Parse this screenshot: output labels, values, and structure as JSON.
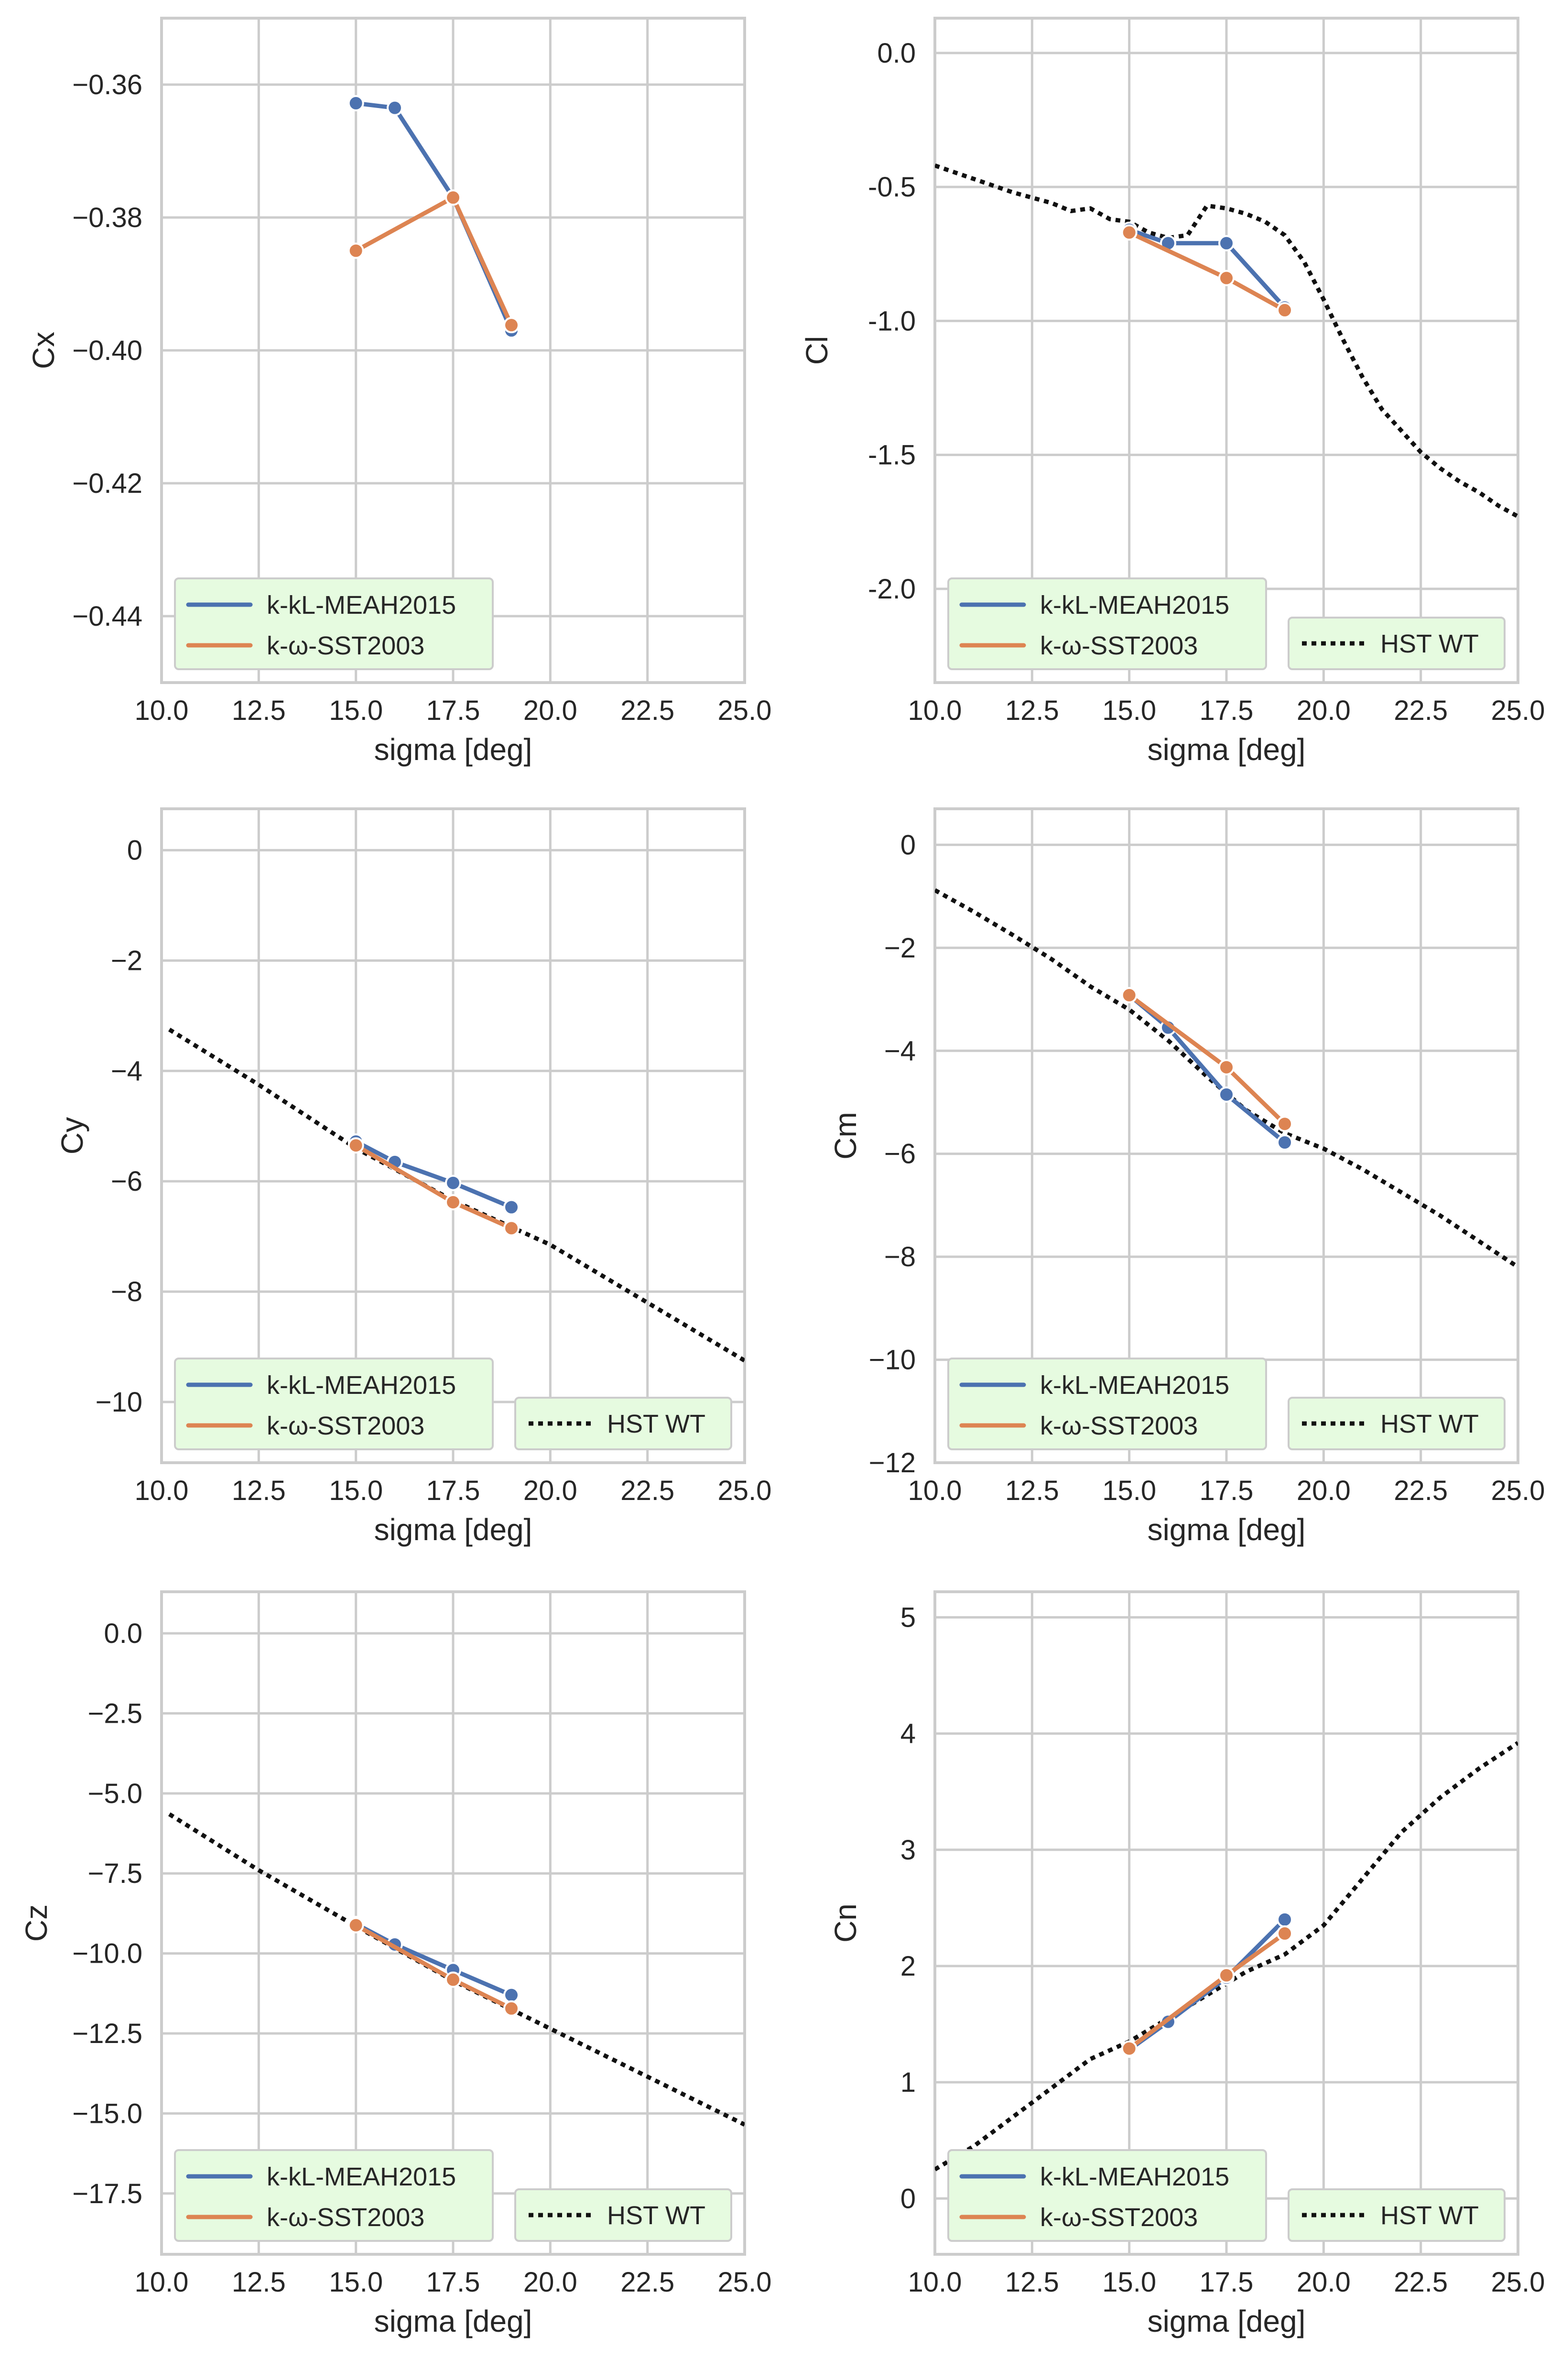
{
  "colors": {
    "kkl": "#4c72b0",
    "sst": "#dd8452",
    "hst": "#111111",
    "grid": "#cccccc",
    "legend_bg": "#e6fbe0"
  },
  "chart_data": [
    {
      "id": "cx",
      "type": "line",
      "xlabel": "sigma [deg]",
      "ylabel": "Cx",
      "xlim": [
        10.0,
        25.0
      ],
      "ylim": [
        -0.45,
        -0.35
      ],
      "xticks": [
        "10.0",
        "12.5",
        "15.0",
        "17.5",
        "20.0",
        "22.5",
        "25.0"
      ],
      "yticks": [
        {
          "v": -0.36,
          "label": "−0.36"
        },
        {
          "v": -0.38,
          "label": "−0.38"
        },
        {
          "v": -0.4,
          "label": "−0.40"
        },
        {
          "v": -0.42,
          "label": "−0.42"
        },
        {
          "v": -0.44,
          "label": "−0.44"
        }
      ],
      "series": [
        {
          "name": "k-kL-MEAH2015",
          "style": "kkl",
          "x": [
            15,
            16,
            17.5,
            19
          ],
          "y": [
            -0.3628,
            -0.3635,
            -0.377,
            -0.397
          ]
        },
        {
          "name": "k-ω-SST2003",
          "style": "sst",
          "x": [
            15,
            17.5,
            19
          ],
          "y": [
            -0.385,
            -0.377,
            -0.3962
          ]
        }
      ],
      "legend": [
        {
          "label": "k-kL-MEAH2015",
          "style": "kkl"
        },
        {
          "label": "k-ω-SST2003",
          "style": "sst"
        }
      ]
    },
    {
      "id": "cl",
      "type": "line",
      "xlabel": "sigma [deg]",
      "ylabel": "Cl",
      "xlim": [
        10.0,
        25.0
      ],
      "ylim": [
        -2.35,
        0.13
      ],
      "xticks": [
        "10.0",
        "12.5",
        "15.0",
        "17.5",
        "20.0",
        "22.5",
        "25.0"
      ],
      "yticks": [
        {
          "v": 0.0,
          "label": "0.0"
        },
        {
          "v": -0.5,
          "label": "-0.5"
        },
        {
          "v": -1.0,
          "label": "-1.0"
        },
        {
          "v": -1.5,
          "label": "-1.5"
        },
        {
          "v": -2.0,
          "label": "-2.0"
        }
      ],
      "series": [
        {
          "name": "HST WT",
          "style": "hst",
          "x": [
            10,
            11,
            12,
            13,
            13.5,
            14,
            14.5,
            15,
            15.5,
            16,
            16.5,
            17,
            17.5,
            18,
            18.5,
            19,
            19.5,
            20,
            20.5,
            21,
            21.5,
            22,
            22.5,
            23,
            23.5,
            24,
            24.5,
            25
          ],
          "y": [
            -0.42,
            -0.47,
            -0.52,
            -0.56,
            -0.59,
            -0.58,
            -0.62,
            -0.63,
            -0.67,
            -0.69,
            -0.68,
            -0.57,
            -0.58,
            -0.6,
            -0.63,
            -0.68,
            -0.78,
            -0.92,
            -1.07,
            -1.21,
            -1.33,
            -1.41,
            -1.49,
            -1.55,
            -1.6,
            -1.64,
            -1.69,
            -1.73
          ]
        },
        {
          "name": "k-kL-MEAH2015",
          "style": "kkl",
          "x": [
            15,
            16,
            17.5,
            19
          ],
          "y": [
            -0.66,
            -0.71,
            -0.71,
            -0.95
          ]
        },
        {
          "name": "k-ω-SST2003",
          "style": "sst",
          "x": [
            15,
            17.5,
            19
          ],
          "y": [
            -0.67,
            -0.84,
            -0.96
          ]
        }
      ],
      "legend": [
        {
          "label": "k-kL-MEAH2015",
          "style": "kkl"
        },
        {
          "label": "k-ω-SST2003",
          "style": "sst"
        },
        {
          "label": "HST WT",
          "style": "hst"
        }
      ]
    },
    {
      "id": "cy",
      "type": "line",
      "xlabel": "sigma [deg]",
      "ylabel": "Cy",
      "xlim": [
        10.0,
        25.0
      ],
      "ylim": [
        -11.1,
        0.75
      ],
      "xticks": [
        "10.0",
        "12.5",
        "15.0",
        "17.5",
        "20.0",
        "22.5",
        "25.0"
      ],
      "yticks": [
        {
          "v": 0,
          "label": "0"
        },
        {
          "v": -2,
          "label": "−2"
        },
        {
          "v": -4,
          "label": "−4"
        },
        {
          "v": -6,
          "label": "−6"
        },
        {
          "v": -8,
          "label": "−8"
        },
        {
          "v": -10,
          "label": "−10"
        }
      ],
      "series": [
        {
          "name": "HST WT",
          "style": "hst",
          "x": [
            10.2,
            12.5,
            15,
            17.5,
            20,
            22.5,
            25
          ],
          "y": [
            -3.25,
            -4.25,
            -5.4,
            -6.35,
            -7.15,
            -8.2,
            -9.25
          ]
        },
        {
          "name": "k-kL-MEAH2015",
          "style": "kkl",
          "x": [
            15,
            16,
            17.5,
            19
          ],
          "y": [
            -5.28,
            -5.65,
            -6.03,
            -6.47
          ]
        },
        {
          "name": "k-ω-SST2003",
          "style": "sst",
          "x": [
            15,
            17.5,
            19
          ],
          "y": [
            -5.35,
            -6.38,
            -6.85
          ]
        }
      ],
      "legend": [
        {
          "label": "k-kL-MEAH2015",
          "style": "kkl"
        },
        {
          "label": "k-ω-SST2003",
          "style": "sst"
        },
        {
          "label": "HST WT",
          "style": "hst"
        }
      ]
    },
    {
      "id": "cm",
      "type": "line",
      "xlabel": "sigma [deg]",
      "ylabel": "Cm",
      "xlim": [
        10.0,
        25.0
      ],
      "ylim": [
        -12.0,
        0.7
      ],
      "xticks": [
        "10.0",
        "12.5",
        "15.0",
        "17.5",
        "20.0",
        "22.5",
        "25.0"
      ],
      "yticks": [
        {
          "v": 0,
          "label": "0"
        },
        {
          "v": -2,
          "label": "−2"
        },
        {
          "v": -4,
          "label": "−4"
        },
        {
          "v": -6,
          "label": "−6"
        },
        {
          "v": -8,
          "label": "−8"
        },
        {
          "v": -10,
          "label": "−10"
        },
        {
          "v": -12,
          "label": "−12"
        }
      ],
      "series": [
        {
          "name": "HST WT",
          "style": "hst",
          "x": [
            10,
            11,
            12,
            13,
            14,
            15,
            16,
            17,
            18,
            19,
            20,
            21,
            22,
            23,
            24,
            25
          ],
          "y": [
            -0.88,
            -1.3,
            -1.75,
            -2.22,
            -2.75,
            -3.2,
            -3.8,
            -4.5,
            -5.15,
            -5.6,
            -5.9,
            -6.3,
            -6.75,
            -7.2,
            -7.7,
            -8.2
          ]
        },
        {
          "name": "k-kL-MEAH2015",
          "style": "kkl",
          "x": [
            15,
            16,
            17.5,
            19
          ],
          "y": [
            -2.92,
            -3.55,
            -4.85,
            -5.78
          ]
        },
        {
          "name": "k-ω-SST2003",
          "style": "sst",
          "x": [
            15,
            17.5,
            19
          ],
          "y": [
            -2.92,
            -4.32,
            -5.42
          ]
        }
      ],
      "legend": [
        {
          "label": "k-kL-MEAH2015",
          "style": "kkl"
        },
        {
          "label": "k-ω-SST2003",
          "style": "sst"
        },
        {
          "label": "HST WT",
          "style": "hst"
        }
      ]
    },
    {
      "id": "cz",
      "type": "line",
      "xlabel": "sigma [deg]",
      "ylabel": "Cz",
      "xlim": [
        10.0,
        25.0
      ],
      "ylim": [
        -19.4,
        1.3
      ],
      "xticks": [
        "10.0",
        "12.5",
        "15.0",
        "17.5",
        "20.0",
        "22.5",
        "25.0"
      ],
      "yticks": [
        {
          "v": 0.0,
          "label": "0.0"
        },
        {
          "v": -2.5,
          "label": "−2.5"
        },
        {
          "v": -5.0,
          "label": "−5.0"
        },
        {
          "v": -7.5,
          "label": "−7.5"
        },
        {
          "v": -10.0,
          "label": "−10.0"
        },
        {
          "v": -12.5,
          "label": "−12.5"
        },
        {
          "v": -15.0,
          "label": "−15.0"
        },
        {
          "v": -17.5,
          "label": "−17.5"
        }
      ],
      "series": [
        {
          "name": "HST WT",
          "style": "hst",
          "x": [
            10.2,
            12.5,
            15,
            17.5,
            20,
            22.5,
            25
          ],
          "y": [
            -5.65,
            -7.4,
            -9.15,
            -10.85,
            -12.35,
            -13.85,
            -15.35
          ]
        },
        {
          "name": "k-kL-MEAH2015",
          "style": "kkl",
          "x": [
            15,
            16,
            17.5,
            19
          ],
          "y": [
            -9.08,
            -9.72,
            -10.52,
            -11.3
          ]
        },
        {
          "name": "k-ω-SST2003",
          "style": "sst",
          "x": [
            15,
            17.5,
            19
          ],
          "y": [
            -9.12,
            -10.82,
            -11.72
          ]
        }
      ],
      "legend": [
        {
          "label": "k-kL-MEAH2015",
          "style": "kkl"
        },
        {
          "label": "k-ω-SST2003",
          "style": "sst"
        },
        {
          "label": "HST WT",
          "style": "hst"
        }
      ]
    },
    {
      "id": "cn",
      "type": "line",
      "xlabel": "sigma [deg]",
      "ylabel": "Cn",
      "xlim": [
        10.0,
        25.0
      ],
      "ylim": [
        -0.48,
        5.22
      ],
      "xticks": [
        "10.0",
        "12.5",
        "15.0",
        "17.5",
        "20.0",
        "22.5",
        "25.0"
      ],
      "yticks": [
        {
          "v": 0,
          "label": "0"
        },
        {
          "v": 1,
          "label": "1"
        },
        {
          "v": 2,
          "label": "2"
        },
        {
          "v": 3,
          "label": "3"
        },
        {
          "v": 4,
          "label": "4"
        },
        {
          "v": 5,
          "label": "5"
        }
      ],
      "series": [
        {
          "name": "HST WT",
          "style": "hst",
          "x": [
            10,
            11,
            12,
            13,
            14,
            15,
            16,
            17,
            18,
            19,
            20,
            21,
            22,
            23,
            24,
            25
          ],
          "y": [
            0.25,
            0.45,
            0.7,
            0.95,
            1.2,
            1.35,
            1.55,
            1.75,
            1.95,
            2.1,
            2.35,
            2.75,
            3.15,
            3.45,
            3.7,
            3.92
          ]
        },
        {
          "name": "k-kL-MEAH2015",
          "style": "kkl",
          "x": [
            15,
            16,
            17.5,
            19
          ],
          "y": [
            1.28,
            1.52,
            1.9,
            2.4
          ]
        },
        {
          "name": "k-ω-SST2003",
          "style": "sst",
          "x": [
            15,
            17.5,
            19
          ],
          "y": [
            1.29,
            1.92,
            2.28
          ]
        }
      ],
      "legend": [
        {
          "label": "k-kL-MEAH2015",
          "style": "kkl"
        },
        {
          "label": "k-ω-SST2003",
          "style": "sst"
        },
        {
          "label": "HST WT",
          "style": "hst"
        }
      ]
    }
  ]
}
